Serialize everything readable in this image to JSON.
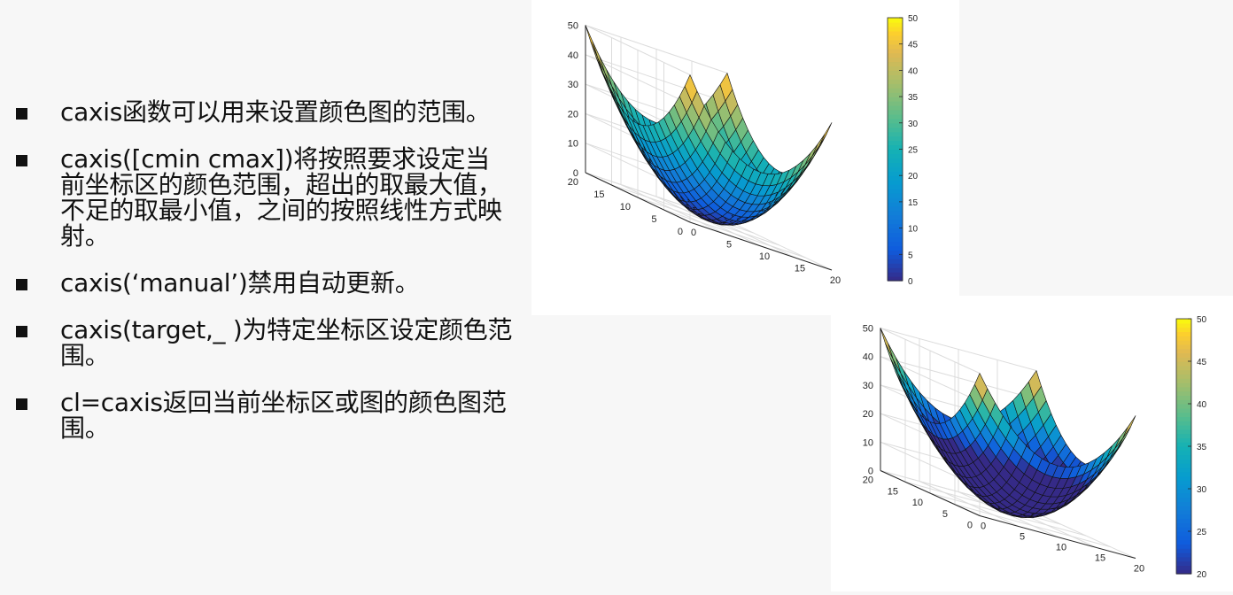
{
  "bullets": [
    "caxis函数可以用来设置颜色图的范围。",
    "caxis([cmin cmax])将按照要求设定当前坐标区的颜色范围，超出的取最大值，不足的取最小值，之间的按照线性方式映射。",
    "caxis(‘manual’)禁用自动更新。",
    "caxis(target,_ )为特定坐标区设定颜色范围。",
    "cl=caxis返回当前坐标区或图的颜色图范围。"
  ],
  "chart_data": [
    {
      "type": "surface",
      "function": "z = ((x-10)^2 + (y-10)^2) / 4",
      "x_range": [
        0,
        20
      ],
      "y_range": [
        0,
        20
      ],
      "z_ticks": [
        "0",
        "10",
        "20",
        "30",
        "40",
        "50"
      ],
      "x_ticks": [
        "0",
        "5",
        "10",
        "15",
        "20"
      ],
      "y_ticks": [
        "0",
        "5",
        "10",
        "15",
        "20"
      ],
      "zlim": [
        0,
        50
      ],
      "colormap": "parula",
      "clim": [
        0,
        50
      ],
      "colorbar_ticks": [
        "0",
        "5",
        "10",
        "15",
        "20",
        "25",
        "30",
        "35",
        "40",
        "45",
        "50"
      ],
      "colorbar": true
    },
    {
      "type": "surface",
      "function": "z = ((x-10)^2 + (y-10)^2) / 4",
      "x_range": [
        0,
        20
      ],
      "y_range": [
        0,
        20
      ],
      "z_ticks": [
        "0",
        "10",
        "20",
        "30",
        "40",
        "50"
      ],
      "x_ticks": [
        "0",
        "5",
        "10",
        "15",
        "20"
      ],
      "y_ticks": [
        "0",
        "5",
        "10",
        "15",
        "20"
      ],
      "zlim": [
        0,
        50
      ],
      "colormap": "parula",
      "clim": [
        20,
        50
      ],
      "colorbar_ticks": [
        "20",
        "25",
        "30",
        "35",
        "40",
        "45",
        "50"
      ],
      "colorbar": true
    }
  ]
}
